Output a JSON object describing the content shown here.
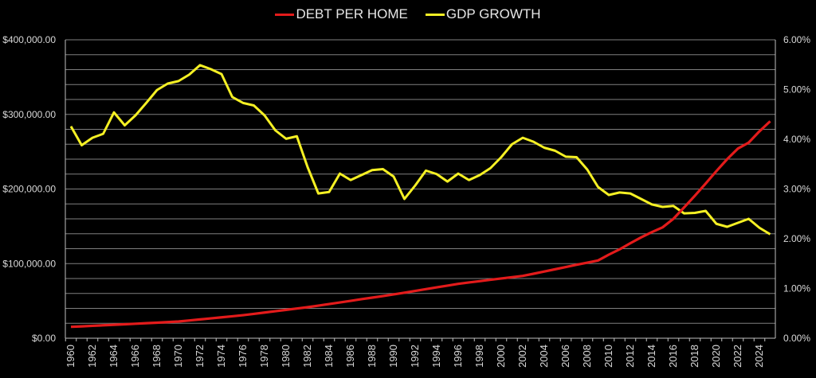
{
  "legend": {
    "series1_label": "DEBT PER HOME",
    "series2_label": "GDP GROWTH"
  },
  "colors": {
    "background": "#000000",
    "debt": "#e31b1b",
    "gdp": "#f5f024",
    "grid": "#7f7f7f",
    "text": "#d9d9d9"
  },
  "chart_data": {
    "type": "line",
    "title": "",
    "xlabel": "",
    "ylabel": "",
    "ylabel_right": "",
    "legend_position": "top",
    "grid": true,
    "x": [
      1960,
      1961,
      1962,
      1963,
      1964,
      1965,
      1966,
      1967,
      1968,
      1969,
      1970,
      1971,
      1972,
      1973,
      1974,
      1975,
      1976,
      1977,
      1978,
      1979,
      1980,
      1981,
      1982,
      1983,
      1984,
      1985,
      1986,
      1987,
      1988,
      1989,
      1990,
      1991,
      1992,
      1993,
      1994,
      1995,
      1996,
      1997,
      1998,
      1999,
      2000,
      2001,
      2002,
      2003,
      2004,
      2005,
      2006,
      2007,
      2008,
      2009,
      2010,
      2011,
      2012,
      2013,
      2014,
      2015,
      2016,
      2017,
      2018,
      2019,
      2020,
      2021,
      2022,
      2023,
      2024,
      2025
    ],
    "x_tick_labels": [
      "1960",
      "1962",
      "1964",
      "1966",
      "1968",
      "1970",
      "1972",
      "1974",
      "1976",
      "1978",
      "1980",
      "1982",
      "1984",
      "1986",
      "1988",
      "1990",
      "1992",
      "1994",
      "1996",
      "1998",
      "2000",
      "2002",
      "2004",
      "2006",
      "2008",
      "2010",
      "2012",
      "2014",
      "2016",
      "2018",
      "2020",
      "2022",
      "2024"
    ],
    "y_left_ticks": [
      "$0.00",
      "$100,000.00",
      "$200,000.00",
      "$300,000.00",
      "$400,000.00"
    ],
    "y_left_range": [
      0,
      400000
    ],
    "y_right_ticks": [
      "0.00%",
      "1.00%",
      "2.00%",
      "3.00%",
      "4.00%",
      "5.00%",
      "6.00%"
    ],
    "y_right_range": [
      0,
      6
    ],
    "series": [
      {
        "name": "DEBT PER HOME",
        "axis": "left",
        "values": [
          15250,
          15900,
          16600,
          17300,
          18000,
          18700,
          19400,
          20100,
          20800,
          21600,
          22400,
          23800,
          25200,
          26600,
          28000,
          29400,
          30900,
          32600,
          34400,
          36200,
          38000,
          39800,
          41600,
          43700,
          45800,
          47900,
          50100,
          52300,
          54400,
          56500,
          58700,
          61000,
          63400,
          65800,
          68200,
          70500,
          72900,
          74700,
          76500,
          78300,
          80100,
          81800,
          83500,
          86400,
          89400,
          92400,
          95400,
          98500,
          101300,
          104200,
          112000,
          119100,
          127300,
          135100,
          142200,
          148600,
          160000,
          175300,
          191000,
          207300,
          224000,
          240000,
          254200,
          262100,
          277300,
          290800
        ]
      },
      {
        "name": "GDP GROWTH",
        "axis": "right",
        "unit": "%",
        "values": [
          4.26,
          3.88,
          4.03,
          4.11,
          4.54,
          4.28,
          4.48,
          4.73,
          4.99,
          5.12,
          5.17,
          5.3,
          5.49,
          5.41,
          5.31,
          4.85,
          4.73,
          4.68,
          4.48,
          4.18,
          4.01,
          4.06,
          3.44,
          2.91,
          2.94,
          3.31,
          3.18,
          3.28,
          3.38,
          3.4,
          3.25,
          2.8,
          3.07,
          3.37,
          3.3,
          3.15,
          3.31,
          3.18,
          3.28,
          3.42,
          3.64,
          3.9,
          4.03,
          3.95,
          3.83,
          3.77,
          3.65,
          3.64,
          3.39,
          3.04,
          2.88,
          2.93,
          2.91,
          2.8,
          2.69,
          2.64,
          2.66,
          2.51,
          2.52,
          2.56,
          2.3,
          2.24,
          2.32,
          2.4,
          2.22,
          2.09
        ]
      }
    ]
  }
}
